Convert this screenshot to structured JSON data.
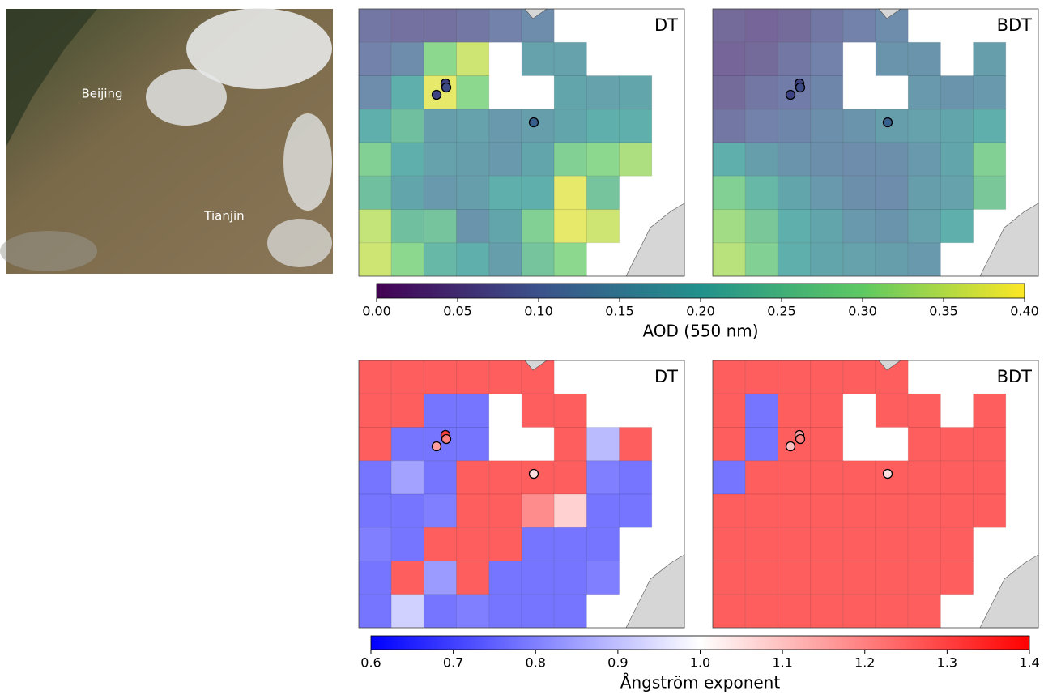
{
  "satellite": {
    "labels": [
      "Beijing",
      "Tianjin"
    ]
  },
  "rows": [
    {
      "label": "AOD (550 nm)",
      "lim": [
        0,
        0.4
      ],
      "ticks": [
        {
          "value": 0,
          "label": "0.00"
        },
        0.05,
        {
          "value": 0.1,
          "label": "0.10"
        },
        0.15,
        {
          "value": 0.2,
          "label": "0.20"
        },
        0.25,
        {
          "value": 0.3,
          "label": "0.30"
        },
        0.35,
        {
          "value": 0.4,
          "label": "0.40"
        }
      ],
      "colors": [
        "#440154",
        "#3b528b",
        "#21918c",
        "#5ec962",
        "#fde725"
      ],
      "panels": [
        {
          "title": "DT",
          "grid": [
            [
              0.08,
              0.07,
              0.07,
              0.08,
              0.1,
              0.12,
              null,
              null,
              null,
              null
            ],
            [
              0.1,
              0.12,
              0.3,
              0.36,
              null,
              0.17,
              0.17,
              null,
              null,
              null
            ],
            [
              0.12,
              0.2,
              0.38,
              0.3,
              null,
              null,
              0.18,
              0.17,
              0.18,
              null
            ],
            [
              0.2,
              0.24,
              0.16,
              0.17,
              0.15,
              0.16,
              0.18,
              0.2,
              0.2,
              null
            ],
            [
              0.28,
              0.2,
              0.17,
              0.16,
              0.15,
              0.18,
              0.28,
              0.3,
              0.33,
              null
            ],
            [
              0.24,
              0.18,
              0.15,
              0.16,
              0.2,
              0.2,
              0.38,
              0.25,
              null,
              null
            ],
            [
              0.35,
              0.24,
              0.25,
              0.14,
              0.18,
              0.28,
              0.38,
              0.36,
              null,
              null
            ],
            [
              0.36,
              0.3,
              0.22,
              0.2,
              0.16,
              0.25,
              0.3,
              null,
              null,
              null
            ]
          ],
          "stations": [
            0.08,
            0.08,
            0.09,
            0.12
          ]
        },
        {
          "title": "BDT",
          "grid": [
            [
              0.06,
              0.05,
              0.06,
              0.08,
              0.1,
              0.12,
              null,
              null,
              null,
              null
            ],
            [
              0.05,
              0.06,
              0.08,
              0.1,
              null,
              0.14,
              0.14,
              null,
              0.16,
              null
            ],
            [
              0.06,
              0.08,
              0.09,
              0.11,
              null,
              null,
              0.15,
              0.14,
              0.15,
              null
            ],
            [
              0.08,
              0.1,
              0.11,
              0.13,
              0.14,
              0.16,
              0.17,
              0.18,
              0.2,
              null
            ],
            [
              0.2,
              0.16,
              0.14,
              0.13,
              0.12,
              0.13,
              0.15,
              0.18,
              0.28,
              null
            ],
            [
              0.28,
              0.22,
              0.18,
              0.15,
              0.13,
              0.12,
              0.16,
              0.17,
              0.26,
              null
            ],
            [
              0.32,
              0.26,
              0.2,
              0.18,
              0.15,
              0.14,
              0.17,
              0.2,
              null,
              null
            ],
            [
              0.34,
              0.28,
              0.2,
              0.18,
              0.17,
              0.16,
              0.15,
              null,
              null,
              null
            ]
          ],
          "stations": [
            0.08,
            0.08,
            0.09,
            0.12
          ]
        }
      ]
    },
    {
      "label": "Ångström exponent",
      "lim": [
        0.6,
        1.4
      ],
      "ticks": [
        0.6,
        0.7,
        0.8,
        0.9,
        {
          "value": 1,
          "label": "1.0"
        },
        1.1,
        1.2,
        1.3,
        1.4
      ],
      "colors": [
        "#0000ff",
        "#ffffff",
        "#ff0000"
      ],
      "panels": [
        {
          "title": "DT",
          "grid": [
            [
              1.35,
              1.35,
              1.35,
              1.35,
              1.35,
              1.35,
              null,
              null,
              null,
              null
            ],
            [
              1.35,
              1.35,
              0.7,
              0.7,
              null,
              1.35,
              1.35,
              null,
              null,
              null
            ],
            [
              1.35,
              0.7,
              0.7,
              0.7,
              null,
              null,
              1.35,
              0.85,
              1.35,
              null
            ],
            [
              0.7,
              0.8,
              0.7,
              1.35,
              1.35,
              1.35,
              1.35,
              0.72,
              0.7,
              null
            ],
            [
              0.7,
              0.7,
              0.72,
              1.35,
              1.35,
              1.25,
              1.1,
              0.7,
              0.7,
              null
            ],
            [
              0.72,
              0.7,
              1.35,
              1.35,
              1.35,
              0.7,
              0.7,
              0.7,
              null,
              null
            ],
            [
              0.7,
              1.35,
              0.78,
              1.35,
              0.7,
              0.7,
              0.7,
              0.72,
              null,
              null
            ],
            [
              0.7,
              0.9,
              0.7,
              0.72,
              0.7,
              0.7,
              0.7,
              null,
              null,
              null
            ]
          ],
          "stations": [
            1.15,
            1.3,
            1.2,
            1.05
          ]
        },
        {
          "title": "BDT",
          "grid": [
            [
              1.35,
              1.35,
              1.35,
              1.35,
              1.35,
              1.35,
              null,
              null,
              null,
              null
            ],
            [
              1.35,
              0.7,
              1.35,
              1.35,
              null,
              1.35,
              1.35,
              null,
              1.35,
              null
            ],
            [
              1.35,
              0.7,
              1.35,
              1.35,
              null,
              null,
              1.35,
              1.35,
              1.35,
              null
            ],
            [
              0.7,
              1.35,
              1.35,
              1.35,
              1.35,
              1.35,
              1.35,
              1.35,
              1.35,
              null
            ],
            [
              1.35,
              1.35,
              1.35,
              1.35,
              1.35,
              1.35,
              1.35,
              1.35,
              1.35,
              null
            ],
            [
              1.35,
              1.35,
              1.35,
              1.35,
              1.35,
              1.35,
              1.35,
              1.35,
              null,
              null
            ],
            [
              1.35,
              1.35,
              1.35,
              1.35,
              1.35,
              1.35,
              1.35,
              1.35,
              null,
              null
            ],
            [
              1.35,
              1.35,
              1.35,
              1.35,
              1.35,
              1.35,
              1.35,
              null,
              null,
              null
            ]
          ],
          "stations": [
            1.1,
            1.15,
            1.2,
            1.05
          ]
        }
      ]
    }
  ]
}
